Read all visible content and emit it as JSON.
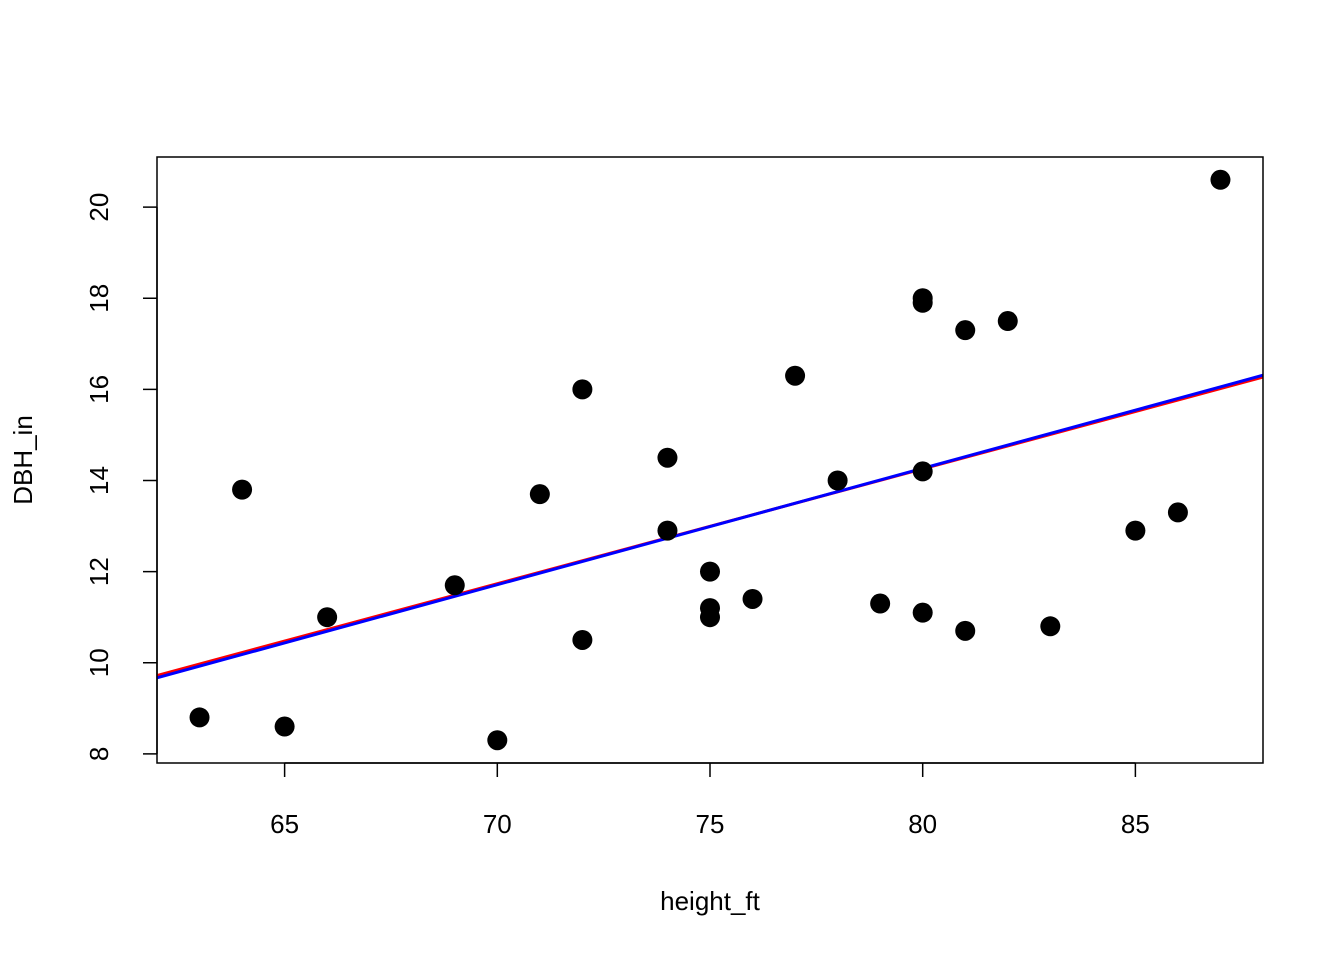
{
  "chart_data": {
    "type": "scatter",
    "title": "",
    "xlabel": "height_ft",
    "ylabel": "DBH_in",
    "xlim": [
      62,
      88
    ],
    "ylim": [
      7.8,
      21.1
    ],
    "x_ticks": [
      65,
      70,
      75,
      80,
      85
    ],
    "y_ticks": [
      8,
      10,
      12,
      14,
      16,
      18,
      20
    ],
    "grid": false,
    "legend": "none",
    "point_color": "#000000",
    "points": [
      {
        "x": 63,
        "y": 8.8
      },
      {
        "x": 64,
        "y": 13.8
      },
      {
        "x": 65,
        "y": 8.6
      },
      {
        "x": 66,
        "y": 11.0
      },
      {
        "x": 69,
        "y": 11.7
      },
      {
        "x": 70,
        "y": 8.3
      },
      {
        "x": 71,
        "y": 13.7
      },
      {
        "x": 72,
        "y": 16.0
      },
      {
        "x": 72,
        "y": 10.5
      },
      {
        "x": 74,
        "y": 14.5
      },
      {
        "x": 74,
        "y": 12.9
      },
      {
        "x": 75,
        "y": 12.0
      },
      {
        "x": 75,
        "y": 11.2
      },
      {
        "x": 75,
        "y": 11.0
      },
      {
        "x": 76,
        "y": 11.4
      },
      {
        "x": 77,
        "y": 16.3
      },
      {
        "x": 78,
        "y": 14.0
      },
      {
        "x": 79,
        "y": 11.3
      },
      {
        "x": 80,
        "y": 18.0
      },
      {
        "x": 80,
        "y": 17.9
      },
      {
        "x": 80,
        "y": 14.2
      },
      {
        "x": 80,
        "y": 11.1
      },
      {
        "x": 81,
        "y": 17.3
      },
      {
        "x": 81,
        "y": 10.7
      },
      {
        "x": 82,
        "y": 17.5
      },
      {
        "x": 83,
        "y": 10.8
      },
      {
        "x": 85,
        "y": 12.9
      },
      {
        "x": 86,
        "y": 13.3
      },
      {
        "x": 87,
        "y": 20.6
      }
    ],
    "lines": [
      {
        "color": "#ff0000",
        "x": [
          62,
          88
        ],
        "y": [
          9.72,
          16.27
        ]
      },
      {
        "color": "#0000ff",
        "x": [
          62,
          88
        ],
        "y": [
          9.67,
          16.31
        ]
      }
    ]
  }
}
